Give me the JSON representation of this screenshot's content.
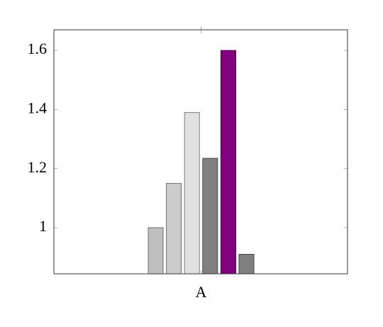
{
  "chart_data": {
    "type": "bar",
    "categories": [
      "A"
    ],
    "series": [
      {
        "color": "#bfbfbf",
        "values": [
          1.0
        ]
      },
      {
        "color": "#cccccc",
        "values": [
          1.15
        ]
      },
      {
        "color": "#e0e0e0",
        "values": [
          1.39
        ]
      },
      {
        "color": "#808080",
        "values": [
          1.235
        ]
      },
      {
        "color": "#800080",
        "values": [
          1.6
        ]
      },
      {
        "color": "#808080",
        "values": [
          0.91
        ]
      }
    ],
    "ylim": [
      0.844,
      1.67
    ],
    "yticks": [
      1,
      1.2,
      1.4,
      1.6
    ],
    "grid": false
  }
}
